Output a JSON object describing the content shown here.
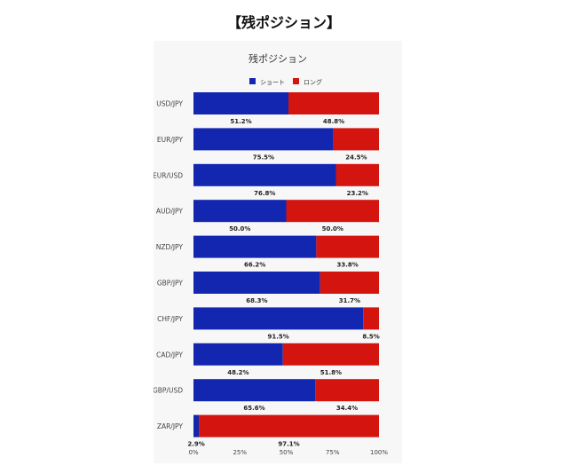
{
  "page": {
    "heading": "【残ポジション】"
  },
  "chart_data": {
    "type": "bar",
    "orientation": "horizontal",
    "stacked": true,
    "title": "残ポジション",
    "categories": [
      "USD/JPY",
      "EUR/JPY",
      "EUR/USD",
      "AUD/JPY",
      "NZD/JPY",
      "GBP/JPY",
      "CHF/JPY",
      "CAD/JPY",
      "GBP/USD",
      "ZAR/JPY"
    ],
    "series": [
      {
        "name": "ショート",
        "color": "#1226b0",
        "values": [
          51.2,
          75.5,
          76.8,
          50.0,
          66.2,
          68.3,
          91.5,
          48.2,
          65.6,
          2.9
        ],
        "labels": [
          "51.2%",
          "75.5%",
          "76.8%",
          "50.0%",
          "66.2%",
          "68.3%",
          "91.5%",
          "48.2%",
          "65.6%",
          "2.9%"
        ]
      },
      {
        "name": "ロング",
        "color": "#d3140f",
        "values": [
          48.8,
          24.5,
          23.2,
          50.0,
          33.8,
          31.7,
          8.5,
          51.8,
          34.4,
          97.1
        ],
        "labels": [
          "48.8%",
          "24.5%",
          "23.2%",
          "50.0%",
          "33.8%",
          "31.7%",
          "8.5%",
          "51.8%",
          "34.4%",
          "97.1%"
        ]
      }
    ],
    "xlim": [
      0,
      100
    ],
    "xticks": [
      "0%",
      "25%",
      "50%",
      "75%",
      "100%"
    ],
    "legend_position": "top-center",
    "grid": false
  }
}
